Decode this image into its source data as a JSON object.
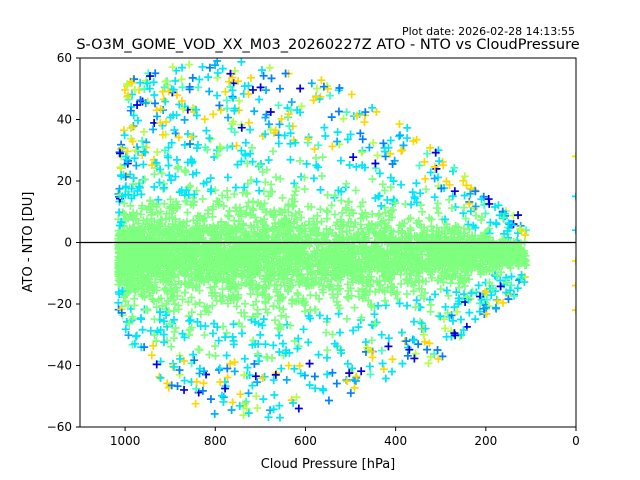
{
  "plot_date": "Plot date: 2026-02-28 14:13:55",
  "chart_data": {
    "type": "scatter",
    "title": "S-O3M_GOME_VOD_XX_M03_20260227Z ATO - NTO vs CloudPressure",
    "xlabel": "Cloud Pressure [hPa]",
    "ylabel": "ATO - NTO [DU]",
    "xlim": [
      1100,
      0
    ],
    "ylim": [
      -60,
      60
    ],
    "x_ticks": [
      1000,
      800,
      600,
      400,
      200,
      0
    ],
    "y_ticks": [
      -60,
      -40,
      -20,
      0,
      20,
      40,
      60
    ],
    "reference_line_y": 0,
    "marker": "plus",
    "point_colors": [
      "#7fff7f",
      "#00e5f8",
      "#ffd700",
      "#0000e0",
      "#b0ff4a",
      "#007fff",
      "#40ffbf",
      "#00b0ff"
    ],
    "density_profile": {
      "cloud_pressure": [
        1010,
        1000,
        900,
        800,
        700,
        600,
        500,
        400,
        300,
        250,
        200,
        150,
        110
      ],
      "spread_upper": [
        30,
        52,
        58,
        60,
        58,
        55,
        50,
        42,
        30,
        22,
        15,
        10,
        8
      ],
      "spread_lower": [
        -22,
        -32,
        -48,
        -56,
        -58,
        -56,
        -50,
        -44,
        -38,
        -30,
        -24,
        -20,
        -12
      ]
    },
    "edge_points": [
      {
        "x": 0,
        "y": 28
      },
      {
        "x": 0,
        "y": 15
      },
      {
        "x": 0,
        "y": 4
      },
      {
        "x": 0,
        "y": -6
      },
      {
        "x": 0,
        "y": -14
      },
      {
        "x": 0,
        "y": -22
      }
    ]
  }
}
